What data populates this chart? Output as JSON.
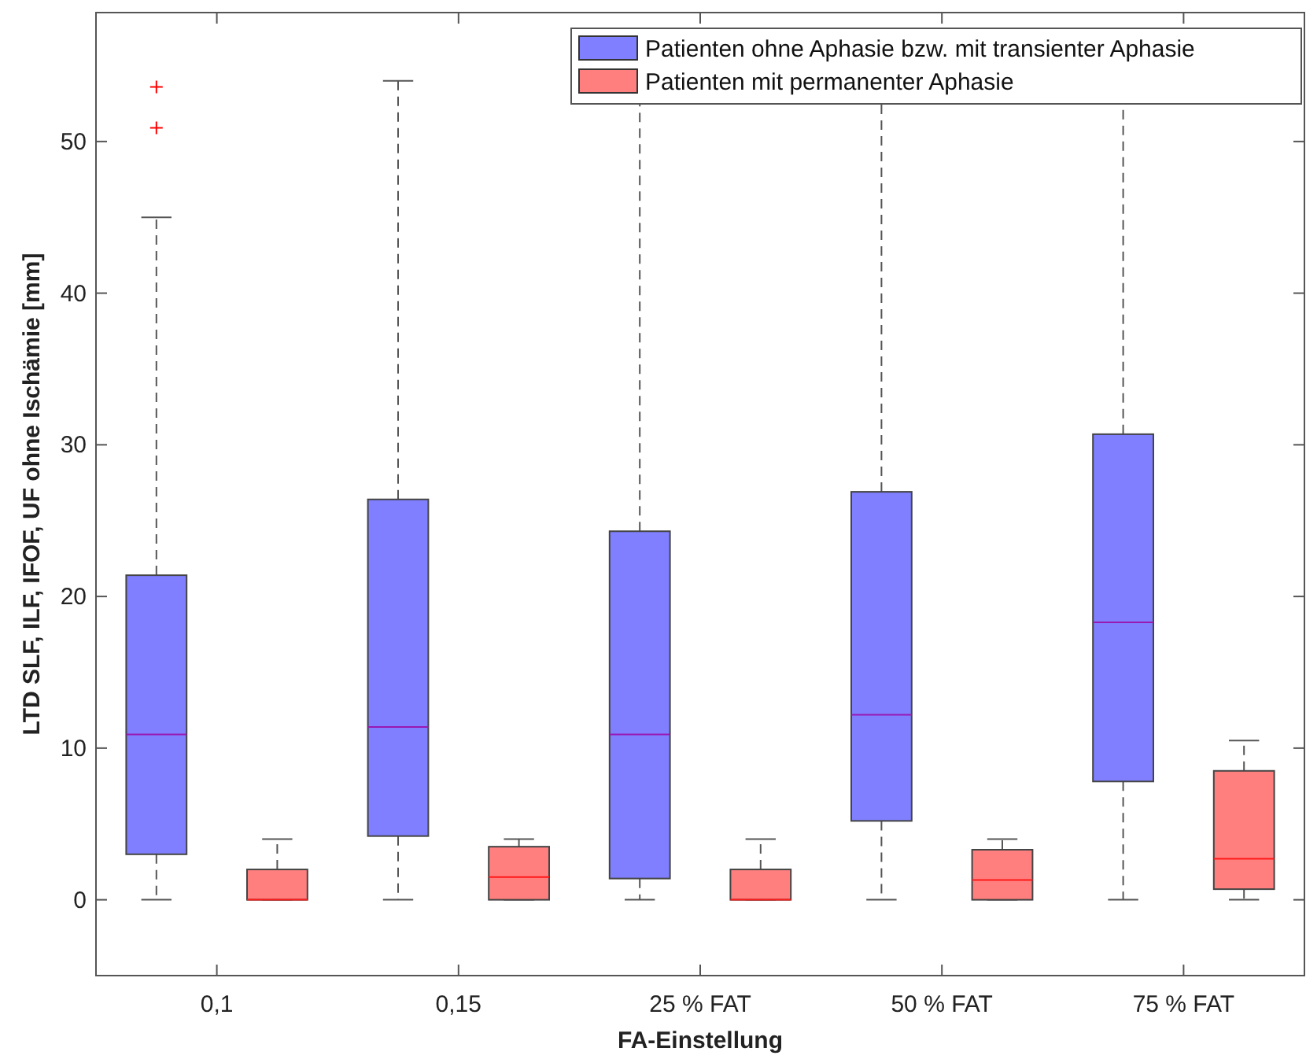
{
  "chart_data": {
    "type": "box",
    "xlabel": "FA-Einstellung",
    "ylabel": "LTD SLF, ILF, IFOF, UF ohne Ischämie [mm]",
    "categories": [
      "0,1",
      "0,15",
      "25 % FAT",
      "50 % FAT",
      "75 % FAT"
    ],
    "ylim": [
      -5,
      58.5
    ],
    "yticks": [
      0,
      10,
      20,
      30,
      40,
      50
    ],
    "legend": "top right",
    "grid": false,
    "marker": "cross",
    "series": [
      {
        "name": "Patienten ohne Aphasie bzw. mit transienter Aphasie",
        "color": "#7f7fff",
        "boxes": [
          {
            "low": 0,
            "q1": 3.0,
            "median": 10.9,
            "q3": 21.4,
            "high": 45,
            "outliers": [
              53.6,
              50.9
            ]
          },
          {
            "low": 0,
            "q1": 4.2,
            "median": 11.4,
            "q3": 26.4,
            "high": 54
          },
          {
            "low": 0,
            "q1": 1.4,
            "median": 10.9,
            "q3": 24.3,
            "high": 55
          },
          {
            "low": 0,
            "q1": 5.2,
            "median": 12.2,
            "q3": 26.9,
            "high": 55
          },
          {
            "low": 0,
            "q1": 7.8,
            "median": 18.3,
            "q3": 30.7,
            "high": 55
          }
        ]
      },
      {
        "name": "Patienten mit permanenter Aphasie",
        "color": "#ff7f7f",
        "boxes": [
          {
            "low": 0,
            "q1": 0,
            "median": 0,
            "q3": 2.0,
            "high": 4.0
          },
          {
            "low": 0,
            "q1": 0,
            "median": 1.5,
            "q3": 3.5,
            "high": 4.0
          },
          {
            "low": 0,
            "q1": 0,
            "median": 0,
            "q3": 2.0,
            "high": 4.0
          },
          {
            "low": 0,
            "q1": 0,
            "median": 1.3,
            "q3": 3.3,
            "high": 4.0
          },
          {
            "low": 0,
            "q1": 0.7,
            "median": 2.7,
            "q3": 8.5,
            "high": 10.5
          }
        ]
      }
    ]
  }
}
